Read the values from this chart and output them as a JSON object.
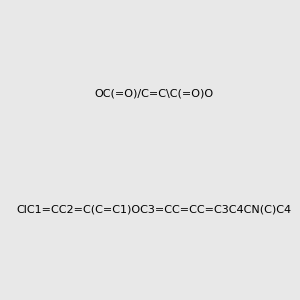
{
  "smiles_maleic_acid": "OC(=O)/C=C\\C(=O)O",
  "smiles_drug": "ClC1=CC2=C(C=C1)OC3=CC=CC=C3C4CN(C)C4",
  "background_color": "#e8e8e8",
  "title": "",
  "figsize": [
    3.0,
    3.0
  ],
  "dpi": 100
}
